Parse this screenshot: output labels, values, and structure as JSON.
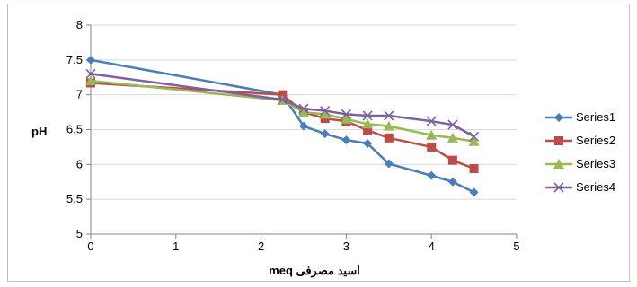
{
  "chart_data": {
    "type": "line",
    "title": "",
    "xlabel": "اسید مصرفی meq",
    "ylabel": "pH",
    "xlim": [
      0,
      5
    ],
    "ylim": [
      5,
      8
    ],
    "x_ticks": [
      0,
      1,
      2,
      3,
      4,
      5
    ],
    "y_ticks": [
      5,
      5.5,
      6,
      6.5,
      7,
      7.5,
      8
    ],
    "x_tick_labels": [
      "0",
      "1",
      "2",
      "3",
      "4",
      "5"
    ],
    "y_tick_labels": [
      "5",
      "5.5",
      "6",
      "6.5",
      "7",
      "7.5",
      "8"
    ],
    "grid": "horizontal",
    "legend_position": "right",
    "series": [
      {
        "name": "Series1",
        "color": "#4a7ebb",
        "marker": "diamond",
        "x": [
          0,
          2.25,
          2.5,
          2.75,
          3,
          3.25,
          3.5,
          4,
          4.25,
          4.5
        ],
        "y": [
          7.5,
          7.0,
          6.55,
          6.44,
          6.35,
          6.3,
          6.01,
          5.84,
          5.75,
          5.6
        ]
      },
      {
        "name": "Series2",
        "color": "#be4b48",
        "marker": "square",
        "x": [
          0,
          2.25,
          2.5,
          2.75,
          3,
          3.25,
          3.5,
          4,
          4.25,
          4.5
        ],
        "y": [
          7.17,
          7.0,
          6.75,
          6.66,
          6.62,
          6.49,
          6.38,
          6.25,
          6.06,
          5.94
        ]
      },
      {
        "name": "Series3",
        "color": "#98b954",
        "marker": "triangle",
        "x": [
          0,
          2.25,
          2.5,
          2.75,
          3,
          3.25,
          3.5,
          4,
          4.25,
          4.5
        ],
        "y": [
          7.2,
          6.92,
          6.75,
          6.72,
          6.65,
          6.58,
          6.55,
          6.42,
          6.38,
          6.33
        ]
      },
      {
        "name": "Series4",
        "color": "#7d60a0",
        "marker": "x",
        "x": [
          0,
          2.25,
          2.5,
          2.75,
          3,
          3.25,
          3.5,
          4,
          4.25,
          4.5
        ],
        "y": [
          7.3,
          6.93,
          6.8,
          6.77,
          6.72,
          6.7,
          6.7,
          6.62,
          6.57,
          6.4
        ]
      }
    ]
  }
}
